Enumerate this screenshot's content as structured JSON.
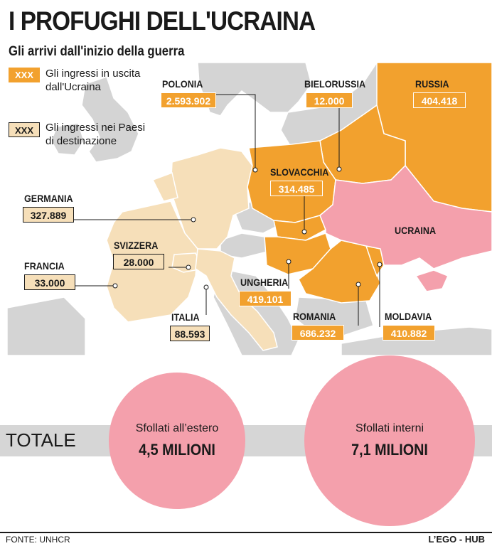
{
  "header": {
    "title": "I PROFUGHI DELL'UCRAINA",
    "subtitle": "Gli arrivi dall'inizio della guerra"
  },
  "legend": {
    "sample": "XXX",
    "outflow_label": "Gli ingressi in uscita dall'Ucraina",
    "destination_label": "Gli ingressi nei Paesi di destinazione"
  },
  "chart_data": {
    "type": "map",
    "unit": "persone",
    "source_country": "UCRAINA",
    "countries": [
      {
        "name": "POLONIA",
        "value": 2593902,
        "label": "2.593.902",
        "category": "ingressi in uscita dall'Ucraina"
      },
      {
        "name": "BIELORUSSIA",
        "value": 12000,
        "label": "12.000",
        "category": "ingressi in uscita dall'Ucraina"
      },
      {
        "name": "RUSSIA",
        "value": 404418,
        "label": "404.418",
        "category": "ingressi in uscita dall'Ucraina"
      },
      {
        "name": "SLOVACCHIA",
        "value": 314485,
        "label": "314.485",
        "category": "ingressi in uscita dall'Ucraina"
      },
      {
        "name": "UNGHERIA",
        "value": 419101,
        "label": "419.101",
        "category": "ingressi in uscita dall'Ucraina"
      },
      {
        "name": "ROMANIA",
        "value": 686232,
        "label": "686.232",
        "category": "ingressi in uscita dall'Ucraina"
      },
      {
        "name": "MOLDAVIA",
        "value": 410882,
        "label": "410.882",
        "category": "ingressi in uscita dall'Ucraina"
      },
      {
        "name": "GERMANIA",
        "value": 327889,
        "label": "327.889",
        "category": "ingressi nei Paesi di destinazione"
      },
      {
        "name": "SVIZZERA",
        "value": 28000,
        "label": "28.000",
        "category": "ingressi nei Paesi di destinazione"
      },
      {
        "name": "FRANCIA",
        "value": 33000,
        "label": "33.000",
        "category": "ingressi nei Paesi di destinazione"
      },
      {
        "name": "ITALIA",
        "value": 88593,
        "label": "88.593",
        "category": "ingressi nei Paesi di destinazione"
      }
    ],
    "totals": {
      "row_label": "TOTALE",
      "items": [
        {
          "label": "Sfollati all’estero",
          "value_text": "4,5 MILIONI",
          "value": 4.5
        },
        {
          "label": "Sfollati interni",
          "value_text": "7,1 MILIONI",
          "value": 7.1
        }
      ]
    }
  },
  "colors": {
    "outflow": "#f2a12e",
    "destination": "#f6dfb9",
    "ukraine": "#f4a0ac",
    "other_land": "#d4d4d4",
    "sea": "#ffffff"
  },
  "footer": {
    "source": "FONTE: UNHCR",
    "credit": "L’EGO - HUB"
  }
}
